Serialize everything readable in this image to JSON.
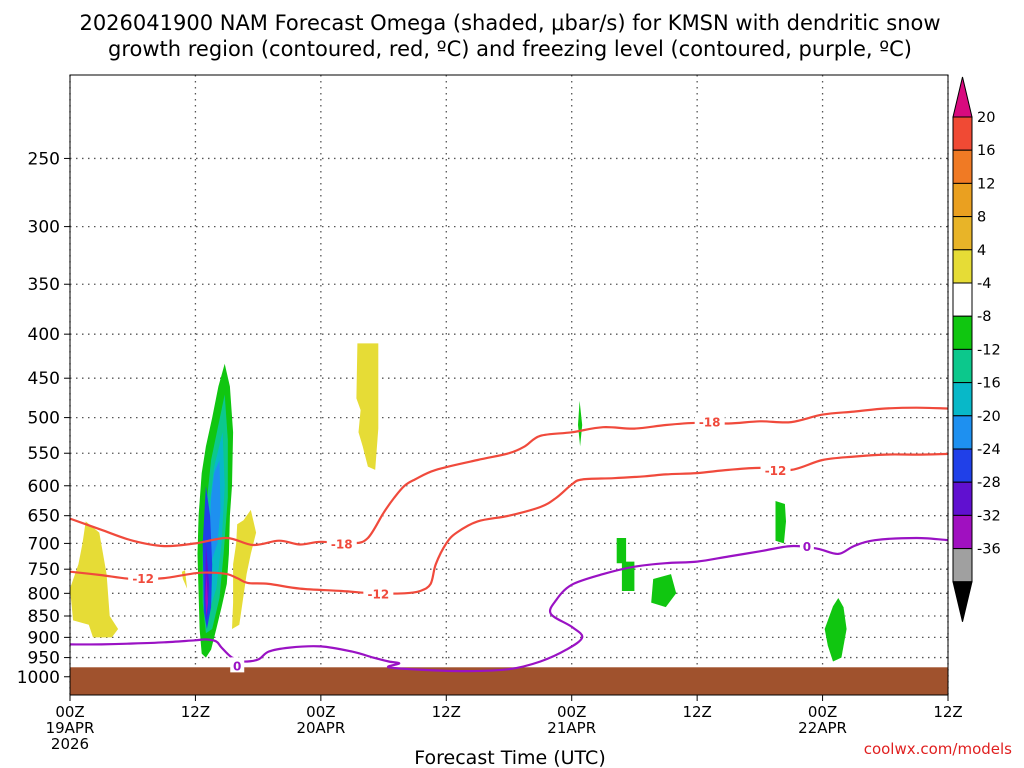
{
  "title": {
    "line1": "2026041900 NAM Forecast Omega (shaded, μbar/s) for KMSN with dendritic snow",
    "line2": "growth region (contoured, red, ºC) and freezing level (contoured, purple, ºC)"
  },
  "credit": "coolwx.com/models",
  "chart_data": {
    "type": "contour",
    "xlabel": "Forecast Time (UTC)",
    "ylabel": "",
    "y_scale": "log-pressure",
    "y_reversed": true,
    "ylim": [
      1050,
      200
    ],
    "xlim_hours": [
      0,
      84
    ],
    "grid": true,
    "y_ticks": [
      250,
      300,
      350,
      400,
      450,
      500,
      550,
      600,
      650,
      700,
      750,
      800,
      850,
      900,
      950,
      1000
    ],
    "x_ticks": [
      {
        "h": 0,
        "lines": [
          "00Z",
          "19APR",
          "2026"
        ]
      },
      {
        "h": 12,
        "lines": [
          "12Z"
        ]
      },
      {
        "h": 24,
        "lines": [
          "00Z",
          "20APR"
        ]
      },
      {
        "h": 36,
        "lines": [
          "12Z"
        ]
      },
      {
        "h": 48,
        "lines": [
          "00Z",
          "21APR"
        ]
      },
      {
        "h": 60,
        "lines": [
          "12Z"
        ]
      },
      {
        "h": 72,
        "lines": [
          "00Z",
          "22APR"
        ]
      },
      {
        "h": 84,
        "lines": [
          "12Z"
        ]
      }
    ],
    "colorbar": {
      "units": "μbar/s",
      "labels": [
        "20",
        "16",
        "12",
        "8",
        "4",
        "-4",
        "-8",
        "-12",
        "-16",
        "-20",
        "-24",
        "-28",
        "-32",
        "-36"
      ],
      "colors": [
        "#d80a7e",
        "#f04a34",
        "#f07a24",
        "#eaa020",
        "#e8b428",
        "#e6dc36",
        "#ffffff",
        "#10c610",
        "#0cc88c",
        "#08b8c8",
        "#1e90f0",
        "#2040e8",
        "#6010d0",
        "#a010c0",
        "#a0a0a0",
        "#000000"
      ]
    },
    "terrain": {
      "color": "#a0522d",
      "pressure": 975
    },
    "contours": [
      {
        "variable": "temperature",
        "level": "-18",
        "color": "#f04a3c",
        "points": [
          [
            0,
            655
          ],
          [
            3,
            675
          ],
          [
            6,
            695
          ],
          [
            9,
            705
          ],
          [
            12,
            700
          ],
          [
            15,
            690
          ],
          [
            17.5,
            703
          ],
          [
            20,
            695
          ],
          [
            22,
            702
          ],
          [
            24,
            697
          ],
          [
            27,
            700
          ],
          [
            28.5,
            690
          ],
          [
            30,
            645
          ],
          [
            31,
            620
          ],
          [
            32,
            600
          ],
          [
            33,
            590
          ],
          [
            35,
            575
          ],
          [
            39,
            560
          ],
          [
            42,
            550
          ],
          [
            43.5,
            540
          ],
          [
            45,
            525
          ],
          [
            48,
            520
          ],
          [
            51,
            513
          ],
          [
            54,
            515
          ],
          [
            57,
            510
          ],
          [
            60,
            507
          ],
          [
            63,
            508
          ],
          [
            66,
            505
          ],
          [
            69,
            506
          ],
          [
            72,
            496
          ],
          [
            75,
            492
          ],
          [
            78,
            488
          ],
          [
            81,
            487
          ],
          [
            84,
            488
          ]
        ],
        "labels": [
          [
            26,
            700
          ],
          [
            61.2,
            505
          ]
        ]
      },
      {
        "variable": "temperature",
        "level": "-12",
        "color": "#f04a3c",
        "points": [
          [
            0,
            755
          ],
          [
            3,
            762
          ],
          [
            6,
            770
          ],
          [
            9,
            768
          ],
          [
            12,
            758
          ],
          [
            13.5,
            757
          ],
          [
            15,
            760
          ],
          [
            16,
            768
          ],
          [
            17,
            778
          ],
          [
            19,
            780
          ],
          [
            22,
            790
          ],
          [
            26,
            795
          ],
          [
            29,
            800
          ],
          [
            32,
            800
          ],
          [
            33.5,
            795
          ],
          [
            34.5,
            780
          ],
          [
            35,
            740
          ],
          [
            36,
            700
          ],
          [
            37,
            680
          ],
          [
            39,
            660
          ],
          [
            42,
            650
          ],
          [
            45,
            635
          ],
          [
            46.5,
            620
          ],
          [
            48,
            598
          ],
          [
            49,
            590
          ],
          [
            52,
            588
          ],
          [
            55,
            585
          ],
          [
            57,
            582
          ],
          [
            60,
            580
          ],
          [
            63,
            575
          ],
          [
            66,
            572
          ],
          [
            69,
            575
          ],
          [
            72,
            560
          ],
          [
            75,
            555
          ],
          [
            78,
            552
          ],
          [
            81,
            552
          ],
          [
            84,
            551
          ]
        ],
        "labels": [
          [
            7,
            768
          ],
          [
            29.5,
            800
          ],
          [
            67.5,
            575
          ]
        ]
      },
      {
        "variable": "freezing level",
        "level": "0",
        "color": "#9a12c4",
        "points": [
          [
            0,
            917
          ],
          [
            3,
            917
          ],
          [
            6,
            915
          ],
          [
            9,
            912
          ],
          [
            12,
            907
          ],
          [
            13,
            905
          ],
          [
            14,
            910
          ],
          [
            14.5,
            925
          ],
          [
            15.5,
            950
          ],
          [
            16.5,
            960
          ],
          [
            18,
            955
          ],
          [
            19,
            935
          ],
          [
            21,
            925
          ],
          [
            24,
            922
          ],
          [
            27,
            935
          ],
          [
            29,
            950
          ],
          [
            30.5,
            960
          ],
          [
            31.5,
            965
          ],
          [
            30.5,
            975
          ],
          [
            34,
            982
          ],
          [
            38,
            985
          ],
          [
            42,
            980
          ],
          [
            45,
            960
          ],
          [
            47.5,
            930
          ],
          [
            49,
            900
          ],
          [
            48,
            875
          ],
          [
            46,
            845
          ],
          [
            46.5,
            815
          ],
          [
            48,
            782
          ],
          [
            51,
            760
          ],
          [
            54,
            745
          ],
          [
            57,
            738
          ],
          [
            60,
            735
          ],
          [
            63,
            725
          ],
          [
            66,
            715
          ],
          [
            69,
            705
          ],
          [
            71.5,
            710
          ],
          [
            73.5,
            720
          ],
          [
            75,
            705
          ],
          [
            77,
            694
          ],
          [
            81,
            690
          ],
          [
            84,
            694
          ]
        ],
        "labels": [
          [
            16,
            970
          ],
          [
            70.5,
            705
          ]
        ]
      }
    ],
    "shaded_regions": [
      {
        "omega_range": "4 to 8",
        "color": "#e6dc36",
        "points": [
          [
            1.5,
            660
          ],
          [
            2.8,
            680
          ],
          [
            3.5,
            760
          ],
          [
            3.8,
            850
          ],
          [
            4.6,
            880
          ],
          [
            4,
            900
          ],
          [
            2.2,
            900
          ],
          [
            1.8,
            870
          ],
          [
            0.3,
            860
          ],
          [
            0,
            790
          ],
          [
            0.8,
            740
          ],
          [
            1.2,
            700
          ]
        ]
      },
      {
        "omega_range": "4 to 8",
        "color": "#e6dc36",
        "points": [
          [
            11,
            752
          ],
          [
            11.2,
            790
          ],
          [
            10.8,
            770
          ],
          [
            10.7,
            755
          ]
        ]
      },
      {
        "omega_range": "4 to 8",
        "color": "#e6dc36",
        "points": [
          [
            16,
            665
          ],
          [
            16.6,
            658
          ],
          [
            17.3,
            640
          ],
          [
            17.8,
            680
          ],
          [
            17.3,
            720
          ],
          [
            16.9,
            760
          ],
          [
            16.5,
            820
          ],
          [
            16.2,
            870
          ],
          [
            15.5,
            880
          ],
          [
            15.6,
            820
          ],
          [
            15.6,
            740
          ],
          [
            15.9,
            700
          ]
        ]
      },
      {
        "omega_range": "4 to 8",
        "color": "#e6dc36",
        "points": [
          [
            27.5,
            410
          ],
          [
            29.5,
            410
          ],
          [
            29.5,
            515
          ],
          [
            29.2,
            575
          ],
          [
            28.5,
            570
          ],
          [
            28,
            540
          ],
          [
            27.6,
            520
          ],
          [
            27.8,
            490
          ],
          [
            27.4,
            475
          ]
        ]
      },
      {
        "omega_range": "-4 to -8",
        "color": "#10c610",
        "points": [
          [
            14.8,
            433
          ],
          [
            15.3,
            460
          ],
          [
            15.6,
            520
          ],
          [
            15.5,
            600
          ],
          [
            15.3,
            650
          ],
          [
            15.2,
            720
          ],
          [
            15,
            780
          ],
          [
            14.5,
            830
          ],
          [
            14,
            880
          ],
          [
            13.5,
            930
          ],
          [
            13,
            950
          ],
          [
            12.6,
            940
          ],
          [
            12.4,
            880
          ],
          [
            12.3,
            800
          ],
          [
            12.2,
            720
          ],
          [
            12.3,
            650
          ],
          [
            12.6,
            580
          ],
          [
            13,
            540
          ],
          [
            13.6,
            500
          ],
          [
            14.2,
            460
          ]
        ]
      },
      {
        "omega_range": "-8 to -12",
        "color": "#0cc88c",
        "points": [
          [
            14.8,
            470
          ],
          [
            15.1,
            530
          ],
          [
            15.1,
            620
          ],
          [
            14.7,
            720
          ],
          [
            14.3,
            810
          ],
          [
            13.6,
            880
          ],
          [
            13,
            890
          ],
          [
            12.7,
            820
          ],
          [
            12.7,
            720
          ],
          [
            13,
            640
          ],
          [
            13.5,
            560
          ]
        ]
      },
      {
        "omega_range": "-12 to -16",
        "color": "#08b8c8",
        "points": [
          [
            14.6,
            520
          ],
          [
            14.8,
            600
          ],
          [
            14.5,
            700
          ],
          [
            14,
            790
          ],
          [
            13.3,
            840
          ],
          [
            13,
            810
          ],
          [
            13,
            730
          ],
          [
            13.3,
            640
          ],
          [
            13.8,
            570
          ]
        ]
      },
      {
        "omega_range": "-16 to -20",
        "color": "#1e90f0",
        "points": [
          [
            14.3,
            560
          ],
          [
            14.4,
            640
          ],
          [
            14.1,
            700
          ],
          [
            13.6,
            730
          ],
          [
            13.3,
            700
          ],
          [
            13.5,
            620
          ],
          [
            13.8,
            580
          ]
        ]
      },
      {
        "omega_range": "-20 to -24",
        "color": "#2040e8",
        "points": [
          [
            13,
            600
          ],
          [
            13.4,
            650
          ],
          [
            13.6,
            740
          ],
          [
            13.5,
            830
          ],
          [
            13.1,
            880
          ],
          [
            12.8,
            840
          ],
          [
            12.7,
            700
          ]
        ]
      },
      {
        "omega_range": "-24 to -28",
        "color": "#6010d0",
        "points": [
          [
            13,
            700
          ],
          [
            13.3,
            780
          ],
          [
            13.1,
            860
          ],
          [
            12.9,
            810
          ]
        ]
      },
      {
        "omega_range": "-28 to -32",
        "color": "#a010c0",
        "points": [
          [
            13.05,
            760
          ],
          [
            13.2,
            820
          ],
          [
            13.05,
            850
          ],
          [
            12.95,
            810
          ]
        ]
      },
      {
        "omega_range": "-4 to -8",
        "color": "#10c610",
        "points": [
          [
            48.75,
            478
          ],
          [
            49,
            510
          ],
          [
            48.8,
            540
          ],
          [
            48.6,
            510
          ]
        ]
      },
      {
        "omega_range": "-4 to -8",
        "color": "#10c610",
        "points": [
          [
            52.3,
            690
          ],
          [
            53.2,
            690
          ],
          [
            53.2,
            735
          ],
          [
            54,
            735
          ],
          [
            54,
            795
          ],
          [
            52.8,
            795
          ],
          [
            52.8,
            738
          ],
          [
            52.3,
            738
          ]
        ]
      },
      {
        "omega_range": "-4 to -8",
        "color": "#10c610",
        "points": [
          [
            55.8,
            770
          ],
          [
            57.5,
            760
          ],
          [
            58,
            800
          ],
          [
            57,
            830
          ],
          [
            55.6,
            820
          ]
        ]
      },
      {
        "omega_range": "-4 to -8",
        "color": "#10c610",
        "points": [
          [
            67.5,
            625
          ],
          [
            68.4,
            630
          ],
          [
            68.5,
            660
          ],
          [
            68.3,
            700
          ],
          [
            67.5,
            695
          ],
          [
            67.5,
            660
          ]
        ]
      },
      {
        "omega_range": "-4 to -8",
        "color": "#10c610",
        "points": [
          [
            73,
            828
          ],
          [
            73.5,
            810
          ],
          [
            74,
            830
          ],
          [
            74.3,
            880
          ],
          [
            73.8,
            950
          ],
          [
            73,
            960
          ],
          [
            72.5,
            920
          ],
          [
            72.2,
            880
          ]
        ]
      }
    ]
  }
}
